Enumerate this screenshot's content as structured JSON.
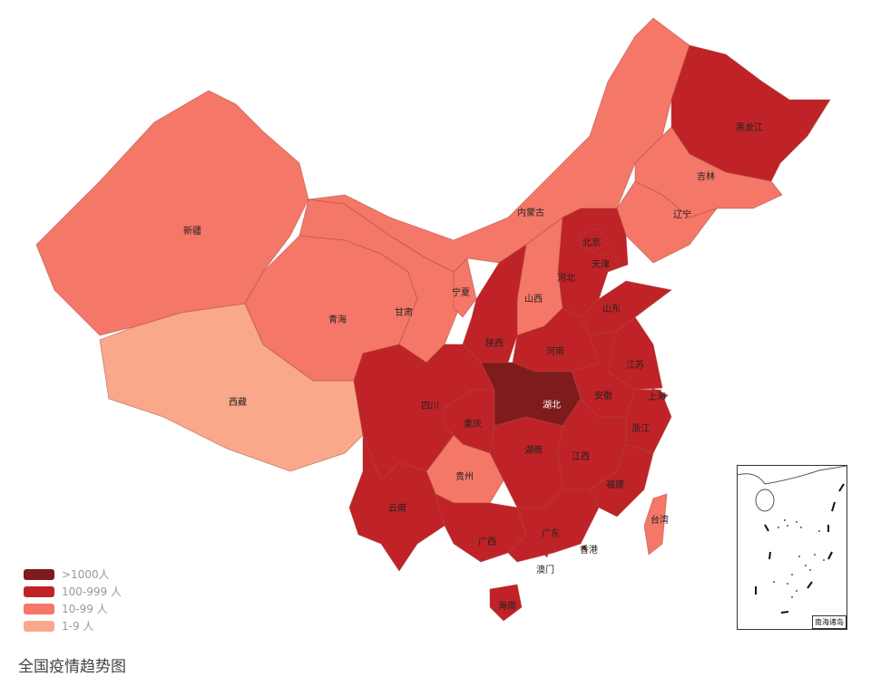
{
  "legend": [
    {
      "label": ">1000人",
      "color": "#7e1b1d"
    },
    {
      "label": "100-999 人",
      "color": "#bf2327"
    },
    {
      "label": "10-99 人",
      "color": "#f47768"
    },
    {
      "label": "1-9 人",
      "color": "#f9a88a"
    }
  ],
  "caption": "全国疫情趋势图",
  "inset_label": "南海诸岛",
  "provinces": [
    {
      "name": "新疆",
      "level": 2
    },
    {
      "name": "西藏",
      "level": 3
    },
    {
      "name": "青海",
      "level": 2
    },
    {
      "name": "甘肃",
      "level": 2
    },
    {
      "name": "宁夏",
      "level": 2
    },
    {
      "name": "内蒙古",
      "level": 2
    },
    {
      "name": "黑龙江",
      "level": 1
    },
    {
      "name": "吉林",
      "level": 2
    },
    {
      "name": "辽宁",
      "level": 2
    },
    {
      "name": "河北",
      "level": 1
    },
    {
      "name": "北京",
      "level": 1
    },
    {
      "name": "天津",
      "level": 1
    },
    {
      "name": "山西",
      "level": 2
    },
    {
      "name": "陕西",
      "level": 1
    },
    {
      "name": "山东",
      "level": 1
    },
    {
      "name": "河南",
      "level": 1
    },
    {
      "name": "江苏",
      "level": 1
    },
    {
      "name": "上海",
      "level": 1
    },
    {
      "name": "安徽",
      "level": 1
    },
    {
      "name": "湖北",
      "level": 0
    },
    {
      "name": "浙江",
      "level": 1
    },
    {
      "name": "江西",
      "level": 1
    },
    {
      "name": "福建",
      "level": 1
    },
    {
      "name": "湖南",
      "level": 1
    },
    {
      "name": "重庆",
      "level": 1
    },
    {
      "name": "贵州",
      "level": 2
    },
    {
      "name": "四川",
      "level": 1
    },
    {
      "name": "云南",
      "level": 1
    },
    {
      "name": "广西",
      "level": 1
    },
    {
      "name": "广东",
      "level": 1
    },
    {
      "name": "海南",
      "level": 1
    },
    {
      "name": "台湾",
      "level": 2
    },
    {
      "name": "香港",
      "level": 1
    },
    {
      "name": "澳门",
      "level": 1
    }
  ]
}
